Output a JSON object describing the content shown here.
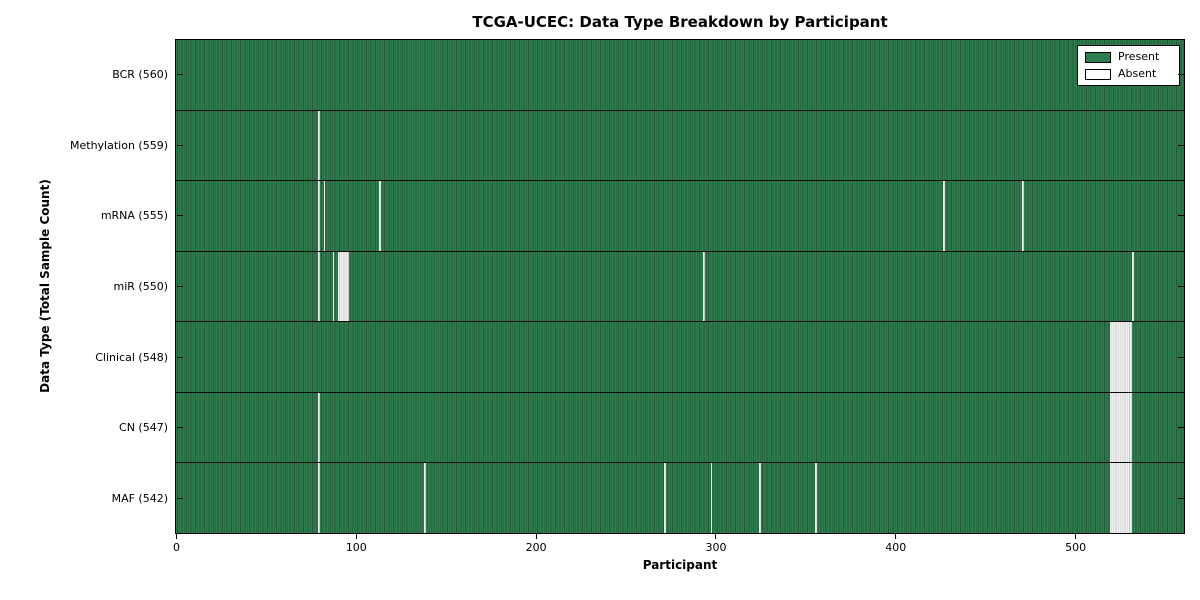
{
  "chart_data": {
    "type": "heatmap",
    "title": "TCGA-UCEC: Data Type Breakdown by Participant",
    "xlabel": "Participant",
    "ylabel": "Data Type (Total Sample Count)",
    "n_participants": 560,
    "x_ticks": [
      0,
      100,
      200,
      300,
      400,
      500
    ],
    "legend": [
      {
        "label": "Present",
        "color": "#2e7d4f"
      },
      {
        "label": "Absent",
        "color": "#ffffff"
      }
    ],
    "colors": {
      "present_fill": "#2e7d4f",
      "present_edge": "#215c3a",
      "absent_fill": "#f1f1f1",
      "absent_edge": "#c9c9c9",
      "frame": "#000000"
    },
    "rows": [
      {
        "label": "BCR (560)",
        "data_type": "BCR",
        "present_count": 560,
        "absent_participants": []
      },
      {
        "label": "Methylation (559)",
        "data_type": "Methylation",
        "present_count": 559,
        "absent_participants": [
          79
        ]
      },
      {
        "label": "mRNA (555)",
        "data_type": "mRNA",
        "present_count": 555,
        "absent_participants": [
          79,
          82,
          113,
          426,
          470
        ]
      },
      {
        "label": "miR (550)",
        "data_type": "miR",
        "present_count": 550,
        "absent_participants": [
          79,
          87,
          90,
          91,
          92,
          93,
          94,
          95,
          293,
          531
        ]
      },
      {
        "label": "Clinical (548)",
        "data_type": "Clinical",
        "present_count": 548,
        "absent_participants": [
          519,
          520,
          521,
          522,
          523,
          524,
          525,
          526,
          527,
          528,
          529,
          530
        ]
      },
      {
        "label": "CN (547)",
        "data_type": "CN",
        "present_count": 547,
        "absent_participants": [
          79,
          519,
          520,
          521,
          522,
          523,
          524,
          525,
          526,
          527,
          528,
          529,
          530
        ]
      },
      {
        "label": "MAF (542)",
        "data_type": "MAF",
        "present_count": 542,
        "absent_participants": [
          79,
          138,
          271,
          297,
          324,
          355,
          519,
          520,
          521,
          522,
          523,
          524,
          525,
          526,
          527,
          528,
          529,
          530
        ]
      }
    ]
  }
}
